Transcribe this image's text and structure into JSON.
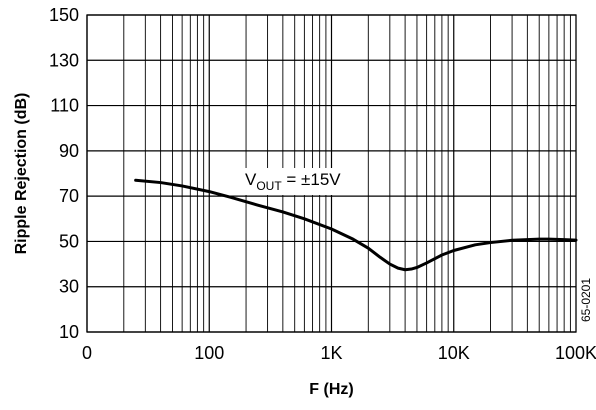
{
  "chart_data": {
    "type": "line",
    "title": "",
    "xlabel": "F (Hz)",
    "ylabel": "Ripple Rejection (dB)",
    "x_scale": "log",
    "xlim": [
      10,
      100000
    ],
    "ylim": [
      10,
      150
    ],
    "grid": true,
    "x_tick_labels": [
      "0",
      "100",
      "1K",
      "10K",
      "100K"
    ],
    "y_ticks": [
      10,
      30,
      50,
      70,
      90,
      110,
      130,
      150
    ],
    "annotation": {
      "prefix": "V",
      "subscript": "OUT",
      "suffix": " = ±15V"
    },
    "figure_id": "65-0201",
    "series": [
      {
        "color": "#000000",
        "x": [
          25,
          40,
          60,
          100,
          150,
          250,
          400,
          600,
          1000,
          1500,
          2000,
          2500,
          3000,
          3500,
          4000,
          4500,
          5000,
          6000,
          8000,
          10000,
          15000,
          20000,
          30000,
          40000,
          50000,
          60000,
          80000,
          100000
        ],
        "y": [
          77,
          76,
          74.5,
          72,
          69.5,
          66,
          63,
          60,
          55.5,
          51,
          47,
          43,
          40,
          38.2,
          37.5,
          37.8,
          38.5,
          40.5,
          44,
          46,
          48.5,
          49.5,
          50.5,
          50.8,
          51,
          51,
          50.8,
          50.6
        ]
      }
    ]
  }
}
